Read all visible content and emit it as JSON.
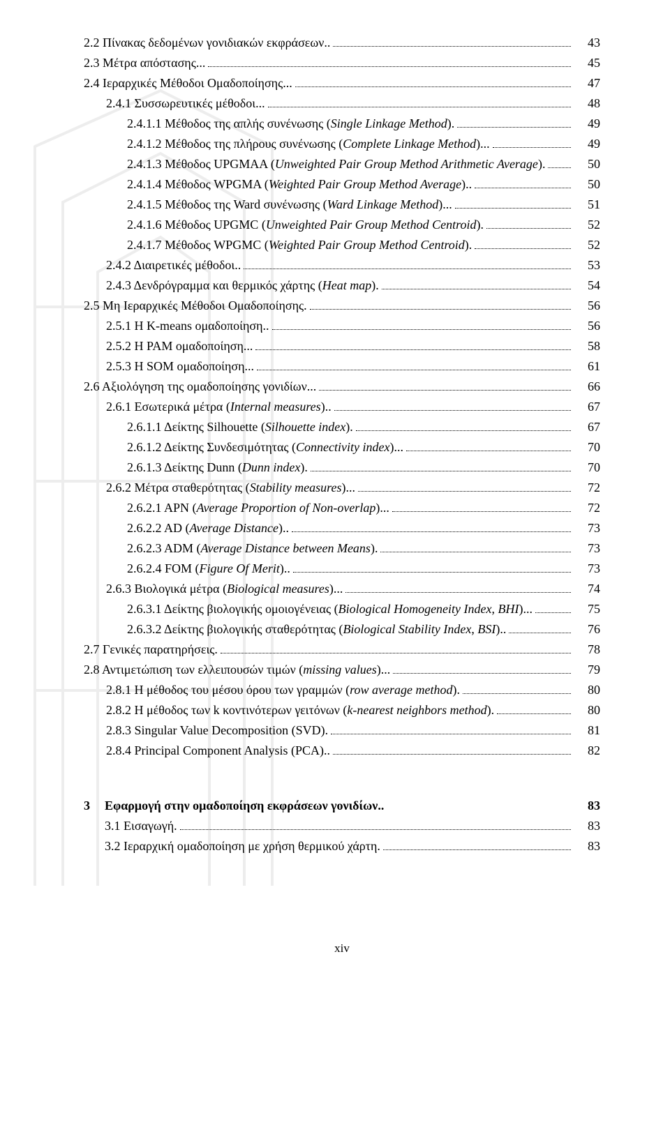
{
  "toc": [
    {
      "indent": 1,
      "text": "2.2   Πίνακας δεδομένων γονιδιακών εκφράσεων",
      "trail": "..",
      "page": "43"
    },
    {
      "indent": 1,
      "text": "2.3   Μέτρα απόστασης",
      "trail": "...",
      "page": "45"
    },
    {
      "indent": 1,
      "text": "2.4   Ιεραρχικές Μέθοδοι Ομαδοποίησης",
      "trail": "...",
      "page": "47"
    },
    {
      "indent": 2,
      "text": "2.4.1   Συσσωρευτικές μέθοδοι",
      "trail": "...",
      "page": "48"
    },
    {
      "indent": 3,
      "text": "2.4.1.1   Μέθοδος της απλής συνένωσης (<i>Single Linkage Method</i>).",
      "trail": "",
      "page": "49"
    },
    {
      "indent": 3,
      "multi": true,
      "text": "2.4.1.2   Μέθοδος  της  πλήρους  συνένωσης  (<i>Complete  Linkage Method</i>)",
      "trail": "...",
      "page": "49"
    },
    {
      "indent": 3,
      "multi": true,
      "text": "2.4.1.3   Μέθοδος  UPGMAA  (<i>Unweighted  Pair  Group  Method Arithmetic Average</i>)",
      "trail": ".",
      "page": "50"
    },
    {
      "indent": 3,
      "multi": true,
      "text": "2.4.1.4   Μέθοδος  WPGMA  (<i>Weighted  Pair  Group  Method Average</i>)",
      "trail": "..",
      "page": "50"
    },
    {
      "indent": 3,
      "text": "2.4.1.5   Μέθοδος της Ward συνένωσης (<i>Ward Linkage Method</i>)",
      "trail": "...",
      "page": "51"
    },
    {
      "indent": 3,
      "multi": true,
      "text": "2.4.1.6   Μέθοδος  UPGMC  (<i>Unweighted  Pair  Group  Method Centroid</i>)",
      "trail": ".",
      "page": "52"
    },
    {
      "indent": 3,
      "multi": true,
      "text": "2.4.1.7   Μέθοδος  WPGMC  (<i>Weighted  Pair  Group  Method Centroid</i>)",
      "trail": ".",
      "page": "52"
    },
    {
      "indent": 2,
      "text": "2.4.2   Διαιρετικές μέθοδοι",
      "trail": "..",
      "page": "53"
    },
    {
      "indent": 2,
      "text": "2.4.3   Δενδρόγραμμα και θερμικός χάρτης (<i>Heat map</i>)",
      "trail": ".",
      "page": "54"
    },
    {
      "indent": 1,
      "text": "2.5   Μη Ιεραρχικές Μέθοδοι Ομαδοποίησης",
      "trail": ".",
      "page": "56"
    },
    {
      "indent": 2,
      "text": "2.5.1   Η K-means ομαδοποίηση",
      "trail": "..",
      "page": "56"
    },
    {
      "indent": 2,
      "text": "2.5.2   Η PAM ομαδοποίηση",
      "trail": "...",
      "page": "58"
    },
    {
      "indent": 2,
      "text": "2.5.3   Η SOM ομαδοποίηση",
      "trail": "...",
      "page": "61"
    },
    {
      "indent": 1,
      "text": "2.6   Αξιολόγηση της ομαδοποίησης γονιδίων",
      "trail": "...",
      "page": "66"
    },
    {
      "indent": 2,
      "text": "2.6.1   Εσωτερικά μέτρα (<i>Internal measures</i>)",
      "trail": "..",
      "page": "67"
    },
    {
      "indent": 3,
      "text": "2.6.1.1   Δείκτης Silhouette (<i>Silhouette index</i>)",
      "trail": ".",
      "page": "67"
    },
    {
      "indent": 3,
      "text": "2.6.1.2   Δείκτης Συνδεσιμότητας (<i>Connectivity index</i>)",
      "trail": "...",
      "page": "70"
    },
    {
      "indent": 3,
      "text": "2.6.1.3   Δείκτης Dunn (<i>Dunn index</i>)",
      "trail": ".",
      "page": "70"
    },
    {
      "indent": 2,
      "text": "2.6.2   Μέτρα σταθερότητας (<i>Stability measures</i>)",
      "trail": "...",
      "page": "72"
    },
    {
      "indent": 3,
      "text": "2.6.2.1   APN (<i>Average Proportion of Non-overlap</i>)",
      "trail": "...",
      "page": "72"
    },
    {
      "indent": 3,
      "text": "2.6.2.2   AD (<i>Average Distance</i>)",
      "trail": "..",
      "page": "73"
    },
    {
      "indent": 3,
      "text": "2.6.2.3   ADM (<i>Average Distance between Means</i>)",
      "trail": ".",
      "page": "73"
    },
    {
      "indent": 3,
      "text": "2.6.2.4   FOM (<i>Figure Of Merit</i>)",
      "trail": "..",
      "page": "73"
    },
    {
      "indent": 2,
      "text": "2.6.3   Βιολογικά μέτρα (<i>Biological measures</i>)",
      "trail": "...",
      "page": "74"
    },
    {
      "indent": 3,
      "multi": true,
      "text": "2.6.3.1   Δείκτης      βιολογικής      ομοιογένειας      (<i>Biological Homogeneity Index</i>, <i>BHI</i>)",
      "trail": "...",
      "page": "75"
    },
    {
      "indent": 3,
      "multi": true,
      "text": "2.6.3.2   Δείκτης  βιολογικής  σταθερότητας  (<i>Biological  Stability Index</i>, <i>BSI</i>)",
      "trail": "..",
      "page": "76"
    },
    {
      "indent": 1,
      "text": "2.7   Γενικές παρατηρήσεις",
      "trail": ".",
      "page": "78"
    },
    {
      "indent": 1,
      "text": "2.8   Αντιμετώπιση των ελλειπουσών τιμών (<i>missing values</i>)",
      "trail": "...",
      "page": "79"
    },
    {
      "indent": 2,
      "multi": true,
      "text": "2.8.1   Η  μέθοδος  του  μέσου  όρου  των  γραμμών  (<i>row  average method</i>)",
      "trail": ".",
      "page": "80"
    },
    {
      "indent": 2,
      "multi": true,
      "text": "2.8.2   Η   μέθοδος   των   k   κοντινότερων   γειτόνων   (<i>k-nearest neighbors method</i>)",
      "trail": ".",
      "page": "80"
    },
    {
      "indent": 2,
      "text": "2.8.3   Singular Value Decomposition (SVD)",
      "trail": ".",
      "page": "81"
    },
    {
      "indent": 2,
      "text": "2.8.4   Principal Component Analysis (PCA)",
      "trail": "..",
      "page": "82"
    }
  ],
  "chapter": {
    "num": "3",
    "title": "Εφαρμογή στην ομαδοποίηση εκφράσεων γονιδίων",
    "trail": "..",
    "page": "83",
    "items": [
      {
        "text": "3.1   Εισαγωγή",
        "trail": ".",
        "page": "83"
      },
      {
        "text": "3.2   Ιεραρχική ομαδοποίηση με χρήση θερμικού χάρτη",
        "trail": ".",
        "page": "83"
      }
    ]
  },
  "footer": "xiv"
}
